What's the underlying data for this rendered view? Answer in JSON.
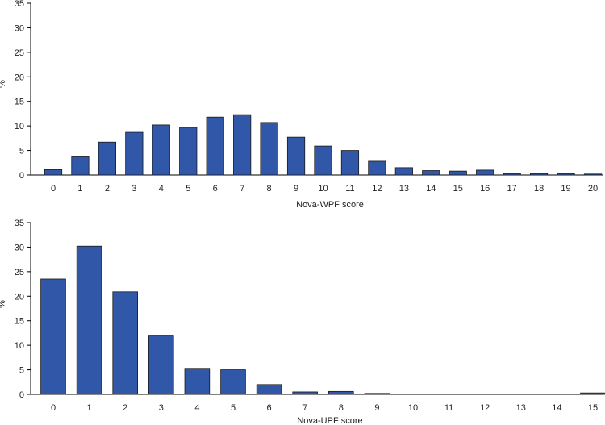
{
  "colors": {
    "bar": "#3157a8"
  },
  "chart_data": [
    {
      "type": "bar",
      "title": "",
      "xlabel": "Nova-WPF score",
      "ylabel": "%",
      "ylim": [
        0,
        35
      ],
      "yticks": [
        0,
        5,
        10,
        15,
        20,
        25,
        30,
        35
      ],
      "grid": false,
      "categories": [
        "0",
        "1",
        "2",
        "3",
        "4",
        "5",
        "6",
        "7",
        "8",
        "9",
        "10",
        "11",
        "12",
        "13",
        "14",
        "15",
        "16",
        "17",
        "18",
        "19",
        "20"
      ],
      "values": [
        1.1,
        3.7,
        6.7,
        8.7,
        10.2,
        9.7,
        11.8,
        12.3,
        10.7,
        7.7,
        5.9,
        5.0,
        2.8,
        1.5,
        0.9,
        0.8,
        1.0,
        0.3,
        0.3,
        0.3,
        0.2
      ]
    },
    {
      "type": "bar",
      "title": "",
      "xlabel": "Nova-UPF score",
      "ylabel": "%",
      "ylim": [
        0,
        35
      ],
      "yticks": [
        0,
        5,
        10,
        15,
        20,
        25,
        30,
        35
      ],
      "grid": false,
      "categories": [
        "0",
        "1",
        "2",
        "3",
        "4",
        "5",
        "6",
        "7",
        "8",
        "9",
        "10",
        "11",
        "12",
        "13",
        "14",
        "15"
      ],
      "values": [
        23.5,
        30.2,
        20.9,
        11.9,
        5.3,
        5.0,
        2.0,
        0.5,
        0.6,
        0.2,
        0,
        0,
        0,
        0,
        0,
        0.3
      ]
    }
  ]
}
